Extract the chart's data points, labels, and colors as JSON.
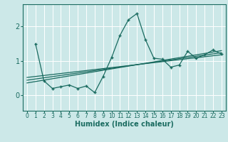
{
  "xlabel": "Humidex (Indice chaleur)",
  "bg_color": "#cce8e8",
  "grid_color": "#ffffff",
  "line_color": "#1a6b60",
  "xlim": [
    -0.5,
    23.5
  ],
  "ylim": [
    -0.45,
    2.65
  ],
  "xticks": [
    0,
    1,
    2,
    3,
    4,
    5,
    6,
    7,
    8,
    9,
    10,
    11,
    12,
    13,
    14,
    15,
    16,
    17,
    18,
    19,
    20,
    21,
    22,
    23
  ],
  "yticks": [
    0,
    1,
    2
  ],
  "humidex_curve": {
    "x": [
      1,
      2,
      3,
      4,
      5,
      6,
      7,
      8,
      9,
      10,
      11,
      12,
      13,
      14,
      15,
      16,
      17,
      18,
      19,
      20,
      21,
      22,
      23
    ],
    "y": [
      1.5,
      0.42,
      0.2,
      0.25,
      0.3,
      0.2,
      0.27,
      0.08,
      0.55,
      1.1,
      1.75,
      2.2,
      2.38,
      1.62,
      1.08,
      1.05,
      0.82,
      0.88,
      1.28,
      1.08,
      1.18,
      1.32,
      1.2
    ]
  },
  "regression_lines": [
    {
      "x": [
        0,
        23
      ],
      "y": [
        0.52,
        1.18
      ]
    },
    {
      "x": [
        0,
        23
      ],
      "y": [
        0.44,
        1.24
      ]
    },
    {
      "x": [
        0,
        23
      ],
      "y": [
        0.36,
        1.3
      ]
    }
  ],
  "tick_fontsize": 5.5,
  "xlabel_fontsize": 7,
  "ytick_fontsize": 7
}
